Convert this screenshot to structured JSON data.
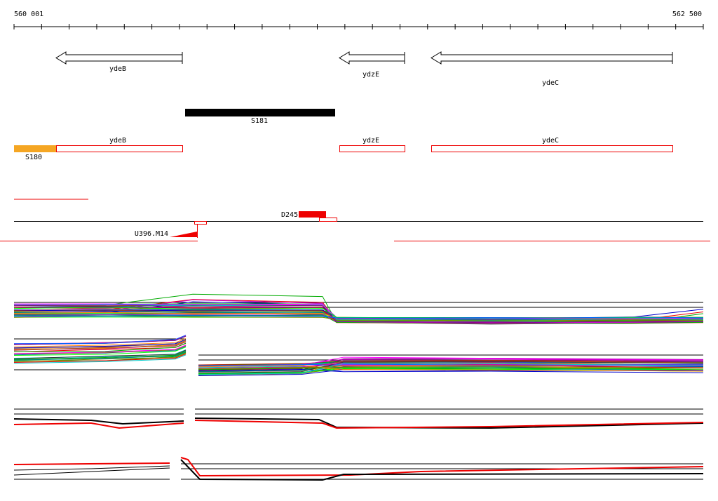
{
  "ruler": {
    "start_label": "560 001",
    "end_label": "562 500"
  },
  "gene_track": {
    "genes": [
      "ydeB",
      "ydzE",
      "ydeC"
    ]
  },
  "segment_track": {
    "segment": "S181"
  },
  "transcript_track": {
    "genes": [
      "ydeB",
      "ydzE",
      "ydeC"
    ],
    "segment": "S180"
  },
  "feature_track": {
    "labels": [
      "D245",
      "U396.M14"
    ]
  }
}
